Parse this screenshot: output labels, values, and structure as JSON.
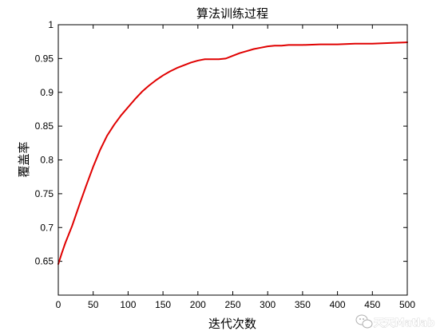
{
  "chart_data": {
    "type": "line",
    "title": "算法训练过程",
    "xlabel": "迭代次数",
    "ylabel": "覆盖率",
    "xlim": [
      0,
      500
    ],
    "ylim": [
      0.6,
      1.0
    ],
    "xticks": [
      0,
      50,
      100,
      150,
      200,
      250,
      300,
      350,
      400,
      450,
      500
    ],
    "yticks": [
      0.65,
      0.7,
      0.75,
      0.8,
      0.85,
      0.9,
      0.95,
      1
    ],
    "ytick_labels": [
      "0.65",
      "0.7",
      "0.75",
      "0.8",
      "0.85",
      "0.9",
      "0.95",
      "1"
    ],
    "grid": false,
    "series": [
      {
        "color": "#e00000",
        "x": [
          0,
          5,
          10,
          15,
          20,
          25,
          30,
          40,
          50,
          60,
          70,
          80,
          90,
          100,
          110,
          120,
          130,
          140,
          150,
          160,
          170,
          180,
          190,
          200,
          210,
          220,
          230,
          240,
          250,
          260,
          270,
          280,
          290,
          300,
          310,
          320,
          330,
          340,
          350,
          375,
          400,
          425,
          450,
          475,
          500
        ],
        "y": [
          0.646,
          0.662,
          0.677,
          0.69,
          0.703,
          0.718,
          0.733,
          0.762,
          0.79,
          0.815,
          0.836,
          0.852,
          0.866,
          0.878,
          0.89,
          0.901,
          0.91,
          0.918,
          0.925,
          0.931,
          0.936,
          0.94,
          0.944,
          0.947,
          0.949,
          0.949,
          0.949,
          0.95,
          0.954,
          0.958,
          0.961,
          0.964,
          0.966,
          0.968,
          0.969,
          0.969,
          0.97,
          0.97,
          0.97,
          0.971,
          0.971,
          0.972,
          0.972,
          0.973,
          0.974
        ]
      }
    ]
  },
  "watermark": {
    "text": "天天Matlab",
    "icon": "wechat-icon"
  }
}
